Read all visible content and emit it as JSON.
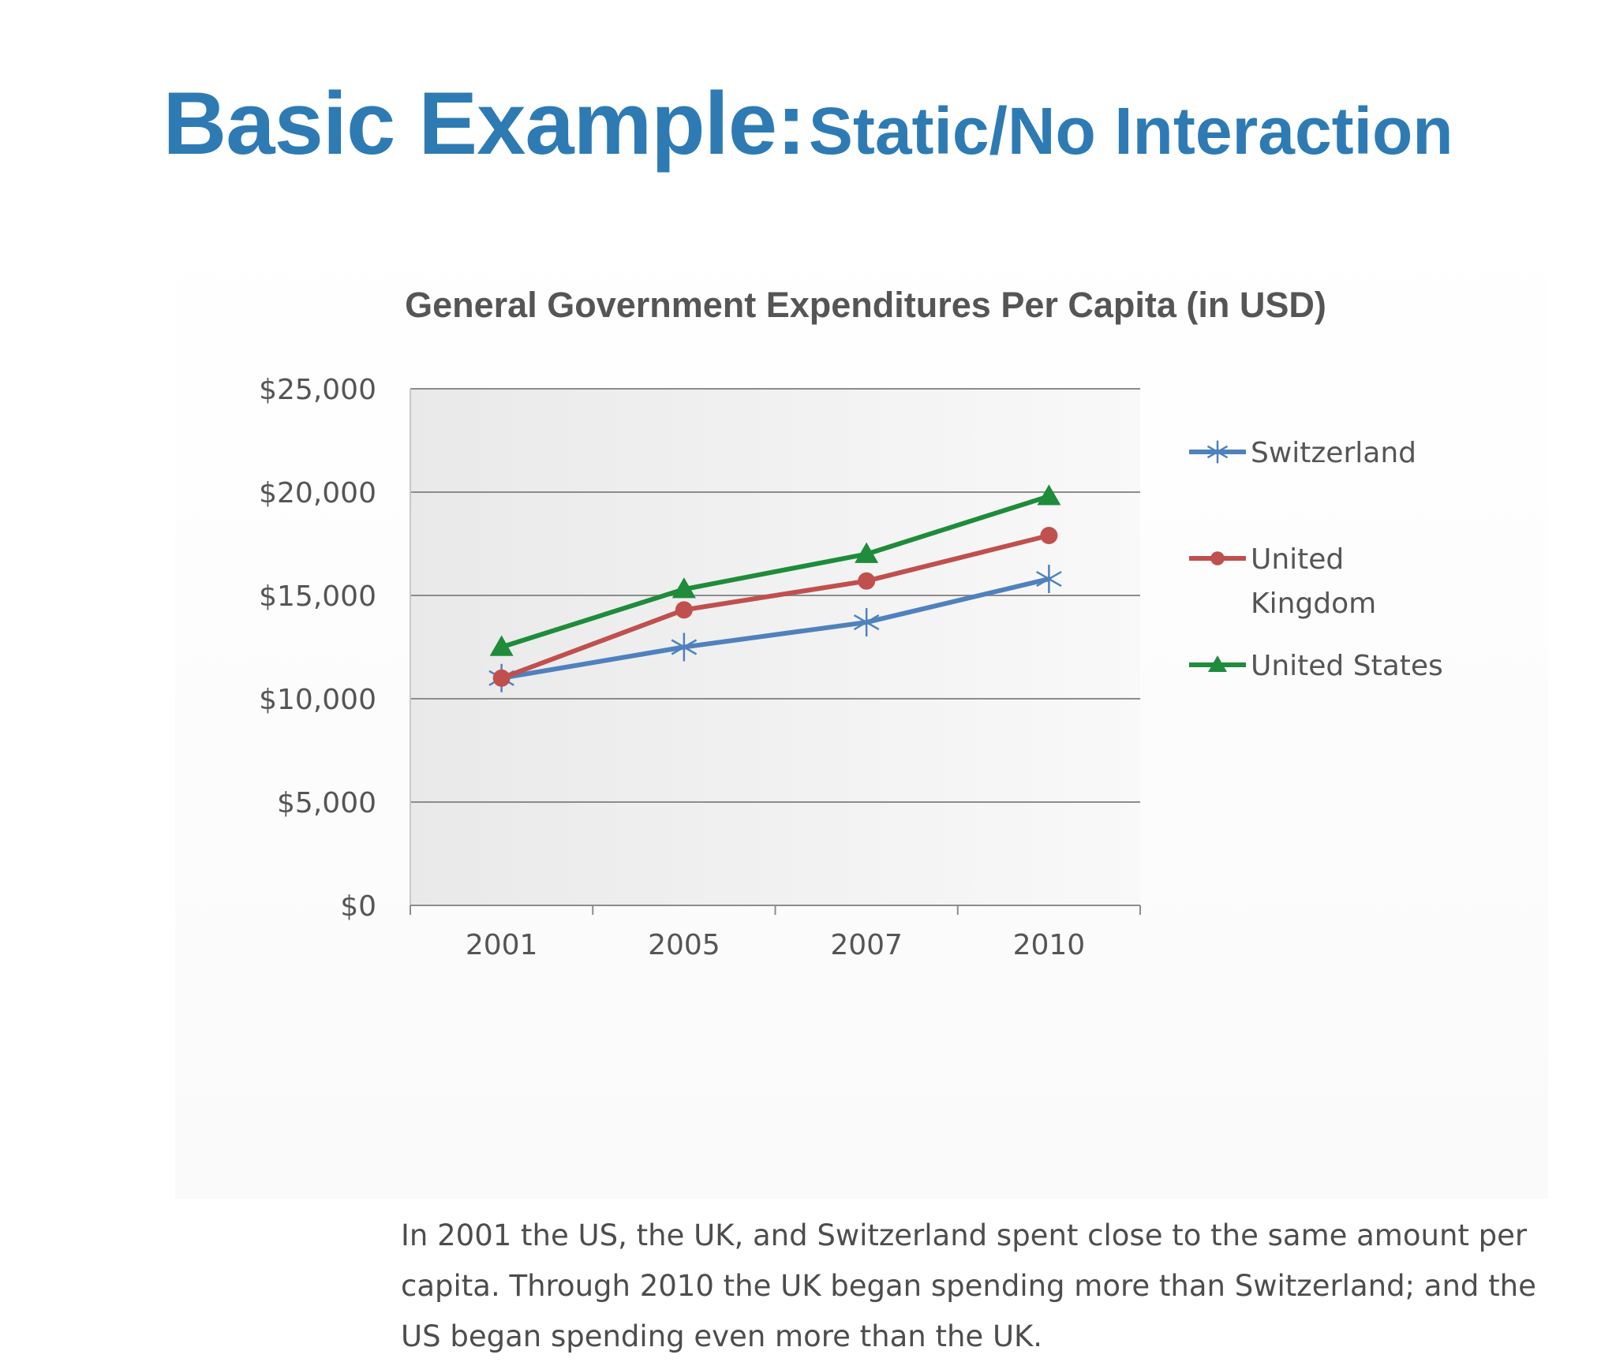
{
  "slide": {
    "title_main": "Basic Example:",
    "title_sub": "Static/No Interaction",
    "title_color": "#2e7bb4",
    "caption": "In 2001 the US, the UK, and Switzerland spent close to the same amount per capita. Through 2010 the UK began spending more than Switzerland; and the US began spending even more than the UK."
  },
  "chart_data": {
    "type": "line",
    "title": "General Government Expenditures Per Capita (in USD)",
    "xlabel": "",
    "ylabel": "",
    "categories": [
      "2001",
      "2005",
      "2007",
      "2010"
    ],
    "ylim": [
      0,
      25000
    ],
    "yticks": [
      0,
      5000,
      10000,
      15000,
      20000,
      25000
    ],
    "ytick_labels": [
      "$0",
      "$5,000",
      "$10,000",
      "$15,000",
      "$20,000",
      "$25,000"
    ],
    "grid": true,
    "legend_position": "right",
    "series": [
      {
        "name": "Switzerland",
        "values": [
          11000,
          12500,
          13700,
          15800
        ],
        "color": "#4f81bd",
        "marker": "asterisk"
      },
      {
        "name": "United Kingdom",
        "values": [
          11000,
          14300,
          15700,
          17900
        ],
        "color": "#c0504d",
        "marker": "circle"
      },
      {
        "name": "United States",
        "values": [
          12500,
          15300,
          17000,
          19800
        ],
        "color": "#1e8c3a",
        "marker": "triangle"
      }
    ]
  }
}
